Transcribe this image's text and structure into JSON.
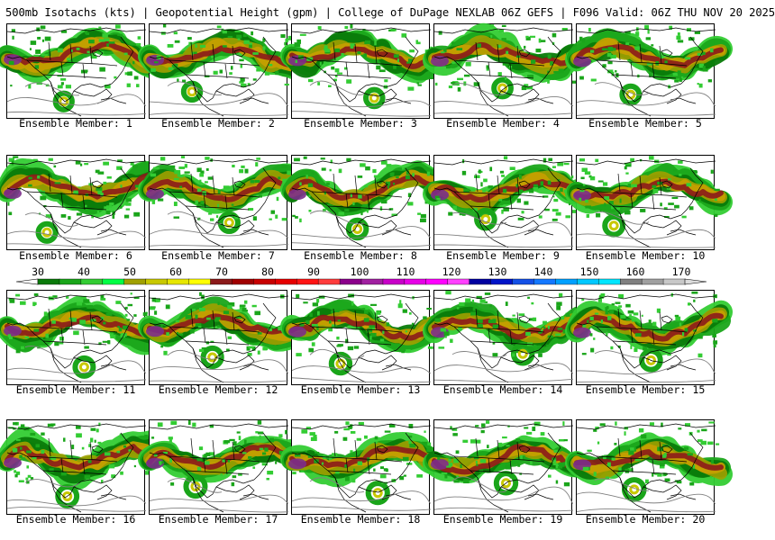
{
  "header": {
    "title": "500mb Isotachs (kts) | Geopotential Height (gpm) | College of DuPage NEXLAB   06Z GEFS | F096 Valid: 06Z THU NOV 20 2025"
  },
  "panels": [
    {
      "caption": "Ensemble Member: 1"
    },
    {
      "caption": "Ensemble Member: 2"
    },
    {
      "caption": "Ensemble Member: 3"
    },
    {
      "caption": "Ensemble Member: 4"
    },
    {
      "caption": "Ensemble Member: 5"
    },
    {
      "caption": "Ensemble Member: 6"
    },
    {
      "caption": "Ensemble Member: 7"
    },
    {
      "caption": "Ensemble Member: 8"
    },
    {
      "caption": "Ensemble Member: 9"
    },
    {
      "caption": "Ensemble Member: 10"
    },
    {
      "caption": "Ensemble Member: 11"
    },
    {
      "caption": "Ensemble Member: 12"
    },
    {
      "caption": "Ensemble Member: 13"
    },
    {
      "caption": "Ensemble Member: 14"
    },
    {
      "caption": "Ensemble Member: 15"
    },
    {
      "caption": "Ensemble Member: 16"
    },
    {
      "caption": "Ensemble Member: 17"
    },
    {
      "caption": "Ensemble Member: 18"
    },
    {
      "caption": "Ensemble Member: 19"
    },
    {
      "caption": "Ensemble Member: 20"
    }
  ],
  "colorbar": {
    "labels": [
      "30",
      "40",
      "50",
      "60",
      "70",
      "80",
      "90",
      "100",
      "110",
      "120",
      "130",
      "140",
      "150",
      "160",
      "170"
    ],
    "colors": [
      "#0a7a0a",
      "#1aa51a",
      "#33cc33",
      "#00ff44",
      "#a0a000",
      "#c8c800",
      "#e6e600",
      "#ffff00",
      "#8b1a1a",
      "#a00000",
      "#c80000",
      "#e60000",
      "#ff1414",
      "#ff3c3c",
      "#8b008b",
      "#a020a0",
      "#c800c8",
      "#e600e6",
      "#ff00ff",
      "#ff40ff",
      "#0000a0",
      "#0014c8",
      "#1450e6",
      "#1478ff",
      "#00a0ff",
      "#00c8ff",
      "#00e6ff",
      "#808080",
      "#a0a0a0",
      "#c8c8c8"
    ]
  }
}
